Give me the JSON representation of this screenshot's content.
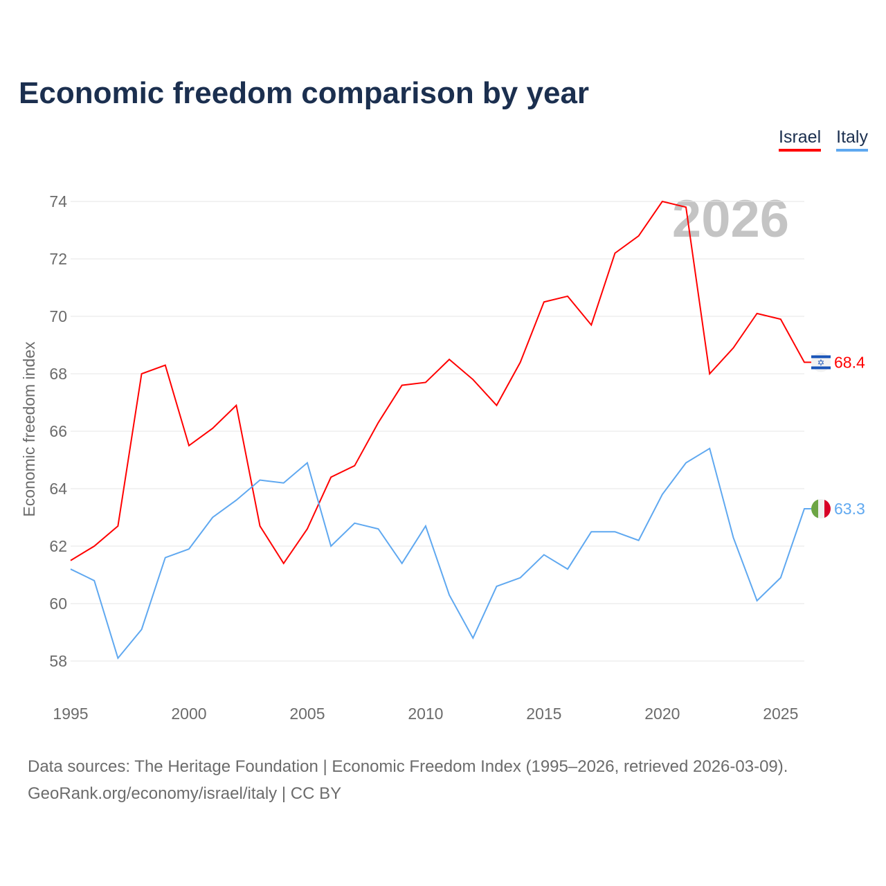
{
  "chart_data": {
    "type": "line",
    "title": "Economic freedom comparison by year",
    "xlabel": "",
    "ylabel": "Economic freedom index",
    "xlim": [
      1995,
      2026
    ],
    "ylim": [
      57,
      75
    ],
    "yticks": [
      58,
      60,
      62,
      64,
      66,
      68,
      70,
      72,
      74
    ],
    "xticks": [
      1995,
      2000,
      2005,
      2010,
      2015,
      2020,
      2025
    ],
    "grid": true,
    "legend_placement": "top-right",
    "watermark_year": "2026",
    "x": [
      1995,
      1996,
      1997,
      1998,
      1999,
      2000,
      2001,
      2002,
      2003,
      2004,
      2005,
      2006,
      2007,
      2008,
      2009,
      2010,
      2011,
      2012,
      2013,
      2014,
      2015,
      2016,
      2017,
      2018,
      2019,
      2020,
      2021,
      2022,
      2023,
      2024,
      2025,
      2026
    ],
    "series": [
      {
        "name": "Israel",
        "color": "#ff0000",
        "end_label": "68.4",
        "values": [
          61.5,
          62.0,
          62.7,
          68.0,
          68.3,
          65.5,
          66.1,
          66.9,
          62.7,
          61.4,
          62.6,
          64.4,
          64.8,
          66.3,
          67.6,
          67.7,
          68.5,
          67.8,
          66.9,
          68.4,
          70.5,
          70.7,
          69.7,
          72.2,
          72.8,
          74.0,
          73.8,
          68.0,
          68.9,
          70.1,
          69.9,
          68.4
        ]
      },
      {
        "name": "Italy",
        "color": "#5fa8f0",
        "end_label": "63.3",
        "values": [
          61.2,
          60.8,
          58.1,
          59.1,
          61.6,
          61.9,
          63.0,
          63.6,
          64.3,
          64.2,
          64.9,
          62.0,
          62.8,
          62.6,
          61.4,
          62.7,
          60.3,
          58.8,
          60.6,
          60.9,
          61.7,
          61.2,
          62.5,
          62.5,
          62.2,
          63.8,
          64.9,
          65.4,
          62.3,
          60.1,
          60.9,
          63.3
        ]
      }
    ]
  },
  "source_line1": "Data sources: The Heritage Foundation | Economic Freedom Index (1995–2026, retrieved 2026-03-09).",
  "source_line2": "GeoRank.org/economy/israel/italy | CC BY"
}
